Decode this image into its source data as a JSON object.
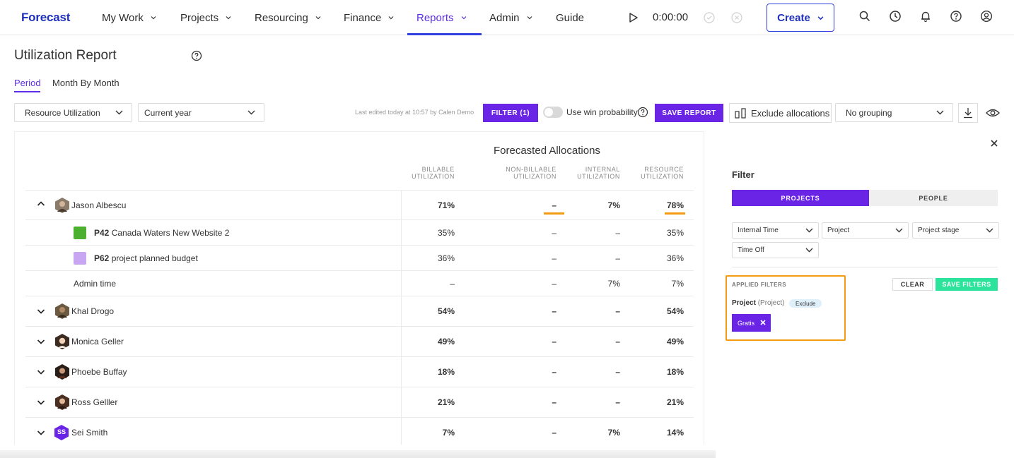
{
  "nav": {
    "logo": "Forecast",
    "items": [
      "My Work",
      "Projects",
      "Resourcing",
      "Finance",
      "Reports",
      "Admin",
      "Guide"
    ],
    "active": "Reports",
    "timer": "0:00:00",
    "create_label": "Create"
  },
  "page": {
    "title": "Utilization Report",
    "tabs": [
      "Period",
      "Month By Month"
    ],
    "active_tab": "Period"
  },
  "toolbar": {
    "report_type": "Resource Utilization",
    "period": "Current year",
    "last_edited": "Last edited today at 10:57 by Calen Demo",
    "filter_label": "FILTER (1)",
    "win_probability_label": "Use win probability",
    "save_report_label": "SAVE REPORT",
    "exclude_allocations_label": "Exclude allocations",
    "grouping": "No grouping"
  },
  "table": {
    "group_title": "Forecasted Allocations",
    "columns": [
      "BILLABLE\nUTILIZATION",
      "NON-BILLABLE\nUTILIZATION",
      "INTERNAL\nUTILIZATION",
      "RESOURCE\nUTILIZATION"
    ],
    "col_lines": [
      [
        "BILLABLE",
        "UTILIZATION"
      ],
      [
        "NON-BILLABLE",
        "UTILIZATION"
      ],
      [
        "INTERNAL",
        "UTILIZATION"
      ],
      [
        "RESOURCE",
        "UTILIZATION"
      ]
    ],
    "rows": [
      {
        "kind": "person",
        "name": "Jason Albescu",
        "expanded": true,
        "values": [
          "71%",
          "–",
          "7%",
          "78%"
        ]
      },
      {
        "kind": "project",
        "code": "P42",
        "name": "Canada Waters New Website 2",
        "color": "#4caf2f",
        "values": [
          "35%",
          "–",
          "–",
          "35%"
        ]
      },
      {
        "kind": "project",
        "code": "P62",
        "name": "project planned budget",
        "color": "#c9a6f2",
        "values": [
          "36%",
          "–",
          "–",
          "36%"
        ]
      },
      {
        "kind": "admin",
        "name": "Admin time",
        "values": [
          "–",
          "–",
          "7%",
          "7%"
        ]
      },
      {
        "kind": "person",
        "name": "Khal Drogo",
        "expanded": false,
        "values": [
          "54%",
          "–",
          "–",
          "54%"
        ]
      },
      {
        "kind": "person",
        "name": "Monica Geller",
        "expanded": false,
        "values": [
          "49%",
          "–",
          "–",
          "49%"
        ]
      },
      {
        "kind": "person",
        "name": "Phoebe Buffay",
        "expanded": false,
        "values": [
          "18%",
          "–",
          "–",
          "18%"
        ]
      },
      {
        "kind": "person",
        "name": "Ross Gelller",
        "expanded": false,
        "values": [
          "21%",
          "–",
          "–",
          "21%"
        ]
      },
      {
        "kind": "person",
        "name": "Sei Smith",
        "initials": "SS",
        "expanded": false,
        "values": [
          "7%",
          "–",
          "7%",
          "14%"
        ]
      }
    ]
  },
  "filter_panel": {
    "title": "Filter",
    "segments": [
      "PROJECTS",
      "PEOPLE"
    ],
    "active_segment": "PROJECTS",
    "dropdowns": [
      "Internal Time",
      "Project",
      "Project stage",
      "Time Off"
    ],
    "applied_label": "APPLIED FILTERS",
    "clear_label": "CLEAR",
    "save_filters_label": "SAVE FILTERS",
    "applied": {
      "field": "Project",
      "field_sub": "(Project)",
      "mode": "Exclude",
      "value": "Gratis"
    }
  },
  "colors": {
    "accent": "#6a24e6",
    "brand_blue": "#1f2fbf",
    "highlight": "#f39c12",
    "save_green": "#2be39a"
  }
}
